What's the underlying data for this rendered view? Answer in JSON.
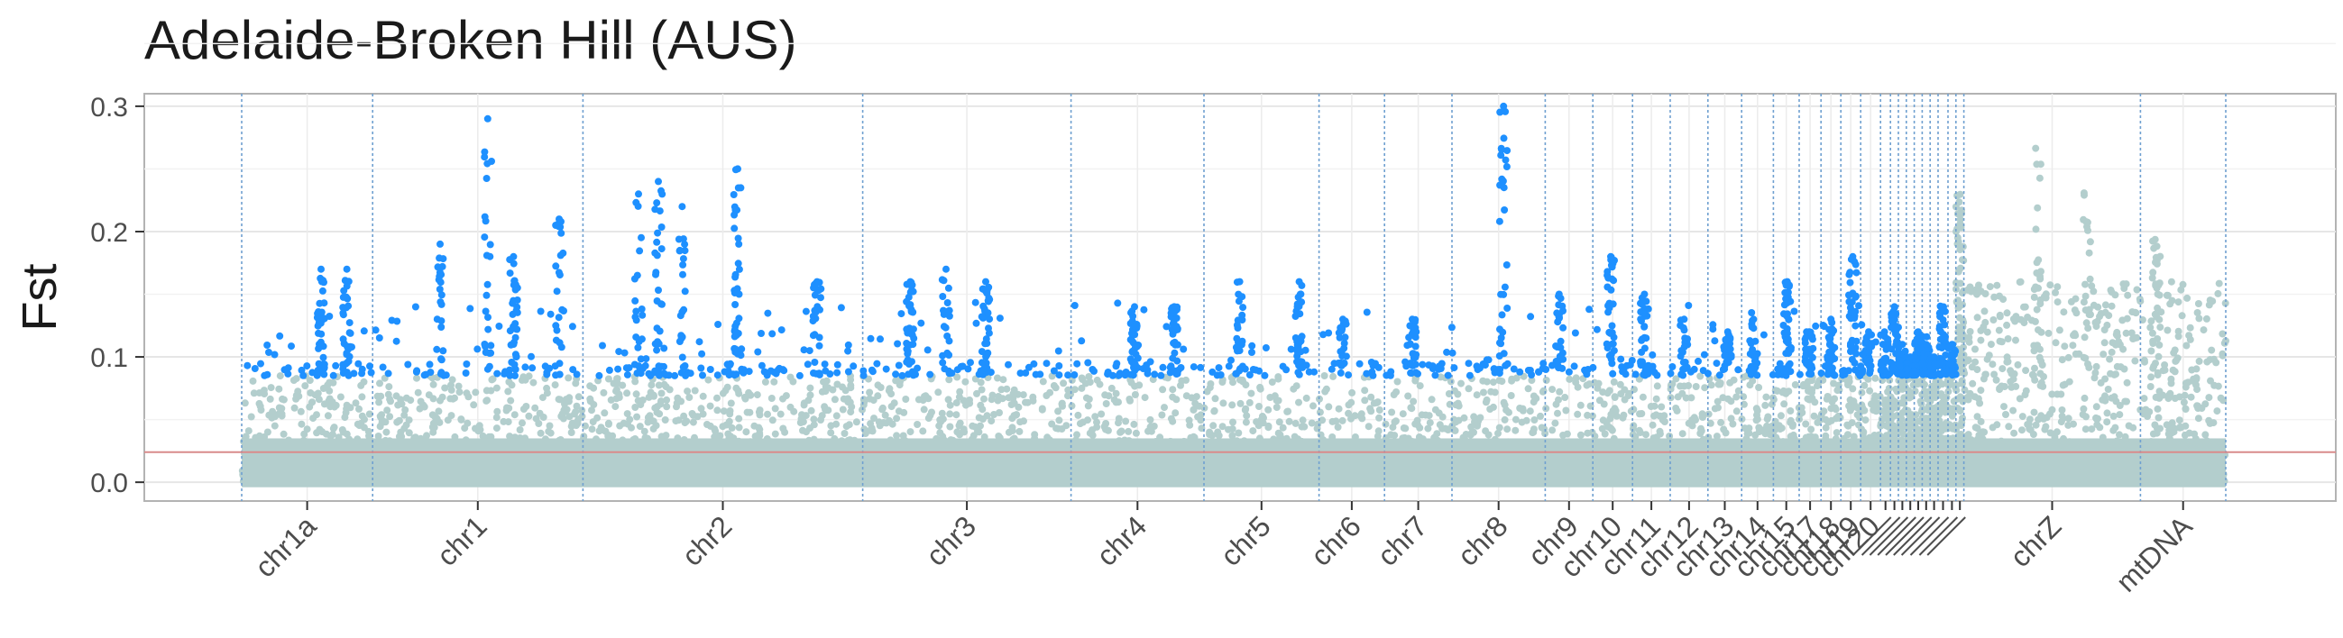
{
  "chart_data": {
    "type": "scatter",
    "title": "Adelaide-Broken Hill (AUS)",
    "ylabel": "Fst",
    "xlabel": "",
    "ylim": [
      -0.015,
      0.31
    ],
    "yticks": [
      "0.0",
      "0.1",
      "0.2",
      "0.3"
    ],
    "ytick_values": [
      0.0,
      0.1,
      0.2,
      0.3
    ],
    "threshold_line": 0.024,
    "highlight_cutoff": 0.085,
    "grid": true,
    "colors": {
      "background_points": "#b3cecd",
      "outlier_points": "#1e90ff",
      "chromosome_boundary": "#6fa0d0",
      "threshold_line": "#d98b8b",
      "grid": "#e6e6e6",
      "panel_border": "#b3b3b3"
    },
    "chromosomes": [
      {
        "name": "chr1a",
        "start": 0.0,
        "end": 0.066,
        "peak": [
          [
            0.04,
            0.17
          ],
          [
            0.053,
            0.17
          ]
        ]
      },
      {
        "name": "chr1",
        "start": 0.066,
        "end": 0.172,
        "peak": [
          [
            0.1,
            0.19
          ],
          [
            0.124,
            0.29
          ],
          [
            0.137,
            0.18
          ],
          [
            0.16,
            0.21
          ]
        ]
      },
      {
        "name": "chr2",
        "start": 0.172,
        "end": 0.313,
        "peak": [
          [
            0.2,
            0.23
          ],
          [
            0.21,
            0.24
          ],
          [
            0.222,
            0.22
          ],
          [
            0.25,
            0.25
          ],
          [
            0.29,
            0.16
          ]
        ]
      },
      {
        "name": "chr3",
        "start": 0.313,
        "end": 0.418,
        "peak": [
          [
            0.337,
            0.16
          ],
          [
            0.355,
            0.17
          ],
          [
            0.375,
            0.16
          ]
        ]
      },
      {
        "name": "chr4",
        "start": 0.418,
        "end": 0.485,
        "peak": [
          [
            0.45,
            0.14
          ],
          [
            0.47,
            0.14
          ]
        ]
      },
      {
        "name": "chr5",
        "start": 0.485,
        "end": 0.543,
        "peak": [
          [
            0.503,
            0.16
          ],
          [
            0.533,
            0.16
          ]
        ]
      },
      {
        "name": "chr6",
        "start": 0.543,
        "end": 0.576,
        "peak": [
          [
            0.555,
            0.13
          ]
        ]
      },
      {
        "name": "chr7",
        "start": 0.576,
        "end": 0.61,
        "peak": [
          [
            0.59,
            0.13
          ]
        ]
      },
      {
        "name": "chr8",
        "start": 0.61,
        "end": 0.657,
        "peak": [
          [
            0.636,
            0.3
          ]
        ]
      },
      {
        "name": "chr9",
        "start": 0.657,
        "end": 0.681,
        "peak": [
          [
            0.664,
            0.15
          ]
        ]
      },
      {
        "name": "chr10",
        "start": 0.681,
        "end": 0.701,
        "peak": [
          [
            0.69,
            0.18
          ]
        ]
      },
      {
        "name": "chr11",
        "start": 0.701,
        "end": 0.72,
        "peak": [
          [
            0.707,
            0.15
          ]
        ]
      },
      {
        "name": "chr12",
        "start": 0.72,
        "end": 0.739,
        "peak": [
          [
            0.727,
            0.13
          ]
        ]
      },
      {
        "name": "chr13",
        "start": 0.739,
        "end": 0.756,
        "peak": [
          [
            0.749,
            0.12
          ]
        ]
      },
      {
        "name": "chr14",
        "start": 0.756,
        "end": 0.772,
        "peak": [
          [
            0.762,
            0.13
          ]
        ]
      },
      {
        "name": "chr15",
        "start": 0.772,
        "end": 0.785,
        "peak": [
          [
            0.779,
            0.16
          ]
        ]
      },
      {
        "name": "chr17",
        "start": 0.785,
        "end": 0.796,
        "peak": [
          [
            0.79,
            0.12
          ]
        ]
      },
      {
        "name": "chr18",
        "start": 0.796,
        "end": 0.806,
        "peak": [
          [
            0.801,
            0.13
          ]
        ]
      },
      {
        "name": "chr19",
        "start": 0.806,
        "end": 0.816,
        "peak": [
          [
            0.812,
            0.18
          ]
        ]
      },
      {
        "name": "chr20",
        "start": 0.816,
        "end": 0.826,
        "peak": [
          [
            0.82,
            0.12
          ]
        ]
      },
      {
        "name": "",
        "start": 0.826,
        "end": 0.831,
        "peak": [
          [
            0.828,
            0.12
          ]
        ]
      },
      {
        "name": "",
        "start": 0.831,
        "end": 0.835,
        "peak": [
          [
            0.833,
            0.14
          ]
        ]
      },
      {
        "name": "",
        "start": 0.835,
        "end": 0.839,
        "peak": [
          [
            0.837,
            0.11
          ]
        ]
      },
      {
        "name": "",
        "start": 0.839,
        "end": 0.843,
        "peak": [
          [
            0.841,
            0.1
          ]
        ]
      },
      {
        "name": "",
        "start": 0.843,
        "end": 0.847,
        "peak": [
          [
            0.845,
            0.12
          ]
        ]
      },
      {
        "name": "",
        "start": 0.847,
        "end": 0.851,
        "peak": [
          [
            0.849,
            0.11
          ]
        ]
      },
      {
        "name": "",
        "start": 0.851,
        "end": 0.855,
        "peak": [
          [
            0.853,
            0.1
          ]
        ]
      },
      {
        "name": "",
        "start": 0.855,
        "end": 0.86,
        "peak": [
          [
            0.857,
            0.14
          ]
        ]
      },
      {
        "name": "",
        "start": 0.86,
        "end": 0.864,
        "peak": [
          [
            0.862,
            0.11
          ]
        ]
      },
      {
        "name": "",
        "start": 0.864,
        "end": 0.868,
        "peak": [
          [
            0.866,
            0.23
          ]
        ]
      },
      {
        "name": "chrZ",
        "start": 0.868,
        "end": 0.957,
        "peak": [
          [
            0.905,
            0.27
          ],
          [
            0.93,
            0.26
          ]
        ]
      },
      {
        "name": "mtDNA",
        "start": 0.957,
        "end": 1.0,
        "peak": [
          [
            0.965,
            0.2
          ]
        ]
      }
    ]
  }
}
